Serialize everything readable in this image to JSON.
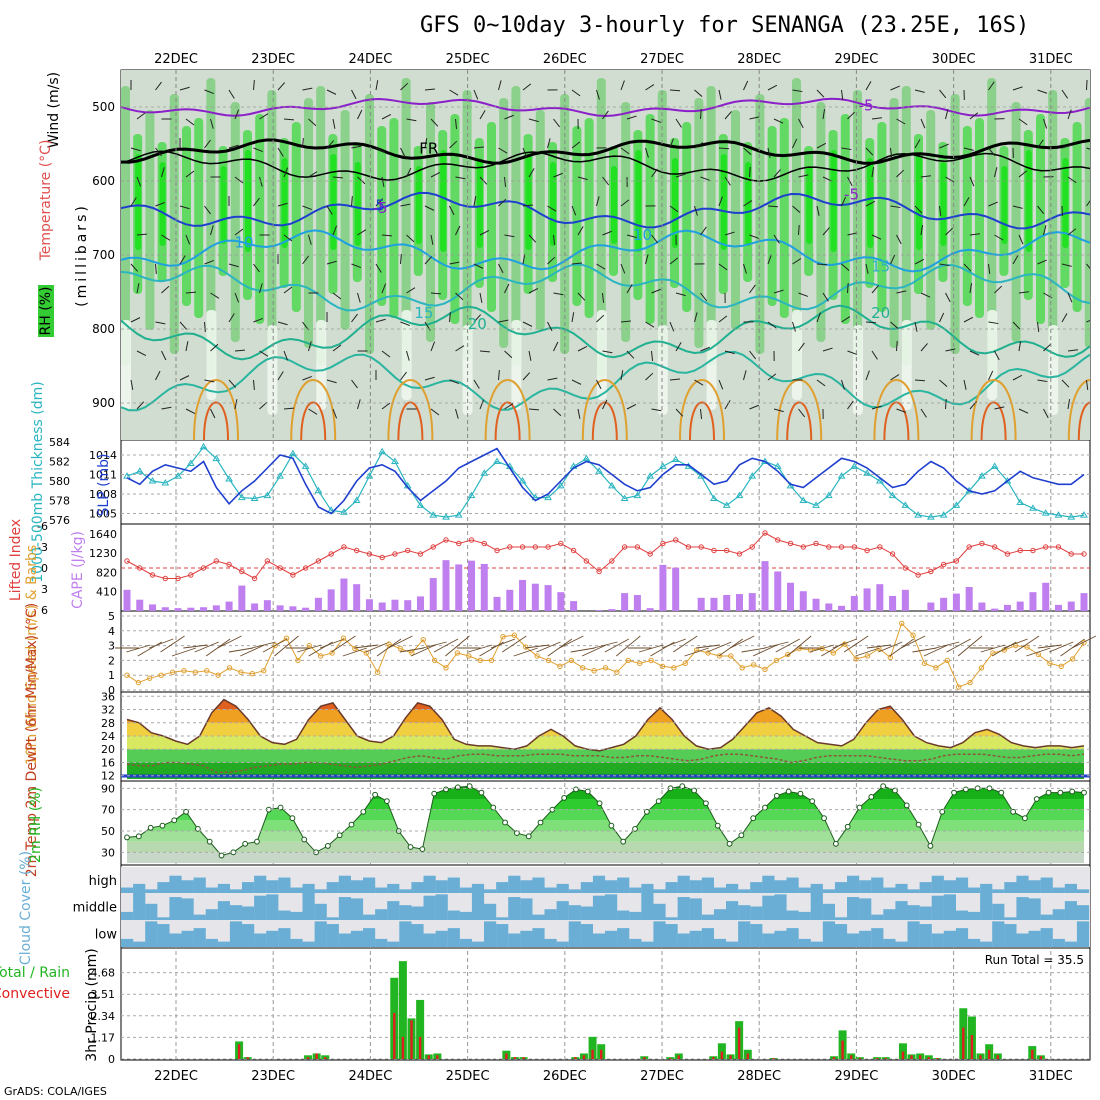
{
  "title": "GFS 0~10day 3-hourly for SENANGA (23.25E, 16S)",
  "footer": "GrADS: COLA/IGES",
  "dates": [
    "22DEC",
    "23DEC",
    "24DEC",
    "25DEC",
    "26DEC",
    "27DEC",
    "28DEC",
    "29DEC",
    "30DEC",
    "31DEC"
  ],
  "colors": {
    "rh_green": "#33cc33",
    "rh_light": "#cfe3cf",
    "purple": "#8b1fc9",
    "blue_line": "#1f3fcf",
    "cyan": "#2ab5c0",
    "red": "#e04040",
    "cape_bar": "#bf7fef",
    "orange": "#e0a030",
    "cloud": "#6aaed6",
    "precip_green": "#22b522",
    "precip_red": "#e02020"
  },
  "chart_data": [
    {
      "type": "heatmap",
      "name": "upper-air cross-section",
      "ylabel": "(millibars)",
      "side_labels": {
        "wind": "Wind (m/s)",
        "temp": "Temperature (°C)",
        "rh": "RH (%)"
      },
      "yticks": [
        500,
        600,
        700,
        800,
        900
      ],
      "ylim": [
        950,
        450
      ],
      "isotherm_labels": [
        {
          "text": "-5",
          "day": 7.1,
          "p": 505
        },
        {
          "text": "FR",
          "day": 2.6,
          "p": 563
        },
        {
          "text": "-5",
          "day": 6.95,
          "p": 625
        },
        {
          "text": "5",
          "day": 2.1,
          "p": 640
        },
        {
          "text": "-5",
          "day": 2.1,
          "p": 643
        },
        {
          "text": "10",
          "day": 0.7,
          "p": 690
        },
        {
          "text": "10",
          "day": 4.8,
          "p": 680
        },
        {
          "text": "15",
          "day": 2.55,
          "p": 785
        },
        {
          "text": "15",
          "day": 7.25,
          "p": 722
        },
        {
          "text": "20",
          "day": 3.1,
          "p": 800
        },
        {
          "text": "20",
          "day": 7.25,
          "p": 785
        }
      ]
    },
    {
      "type": "line",
      "name": "thickness and SLP",
      "ylabel_left": "1000-500mb Thickness (dm)",
      "ylabel_right": "SLP (mb)",
      "left_ticks": [
        576,
        578,
        580,
        582,
        584
      ],
      "right_ticks": [
        1005,
        1008,
        1011,
        1014
      ],
      "series": [
        {
          "name": "Thickness (dm)",
          "color": "#2ab5c0",
          "values": [
            580.5,
            581,
            580,
            579.8,
            580.5,
            581.8,
            583.5,
            582.3,
            580.2,
            578.3,
            578.2,
            578.5,
            580.5,
            582.8,
            581.5,
            579,
            577,
            576.8,
            578,
            580.5,
            583,
            582,
            579.5,
            577.5,
            576.5,
            576.3,
            576.5,
            578.5,
            580.8,
            582,
            581.5,
            580,
            578.3,
            578.3,
            579.5,
            581.5,
            582.3,
            581,
            579.5,
            578.2,
            578.5,
            580.5,
            581.5,
            582.2,
            581.5,
            580.5,
            578.2,
            577.5,
            578.5,
            580.5,
            582,
            581.5,
            579.5,
            578,
            577.5,
            578.5,
            580.5,
            581.5,
            580.8,
            580,
            578.5,
            577.5,
            576.5,
            576.3,
            576.5,
            577.5,
            579,
            580.5,
            581.5,
            580,
            577.8,
            577.2,
            576.7,
            576.5,
            576.3,
            576.5
          ]
        },
        {
          "name": "SLP (mb)",
          "color": "#1f3fcf",
          "values": [
            1010.5,
            1009.5,
            1011.5,
            1012.5,
            1012,
            1011.5,
            1013,
            1009,
            1006.5,
            1008.5,
            1010,
            1012,
            1014,
            1013.5,
            1009.5,
            1006,
            1005,
            1007,
            1010,
            1012,
            1012.5,
            1011.5,
            1009,
            1007,
            1008.5,
            1010,
            1012,
            1013,
            1014,
            1015,
            1012,
            1009,
            1007,
            1008,
            1010,
            1012,
            1013,
            1012.5,
            1011,
            1009.5,
            1008.5,
            1009,
            1011,
            1012.5,
            1012.5,
            1011,
            1009.5,
            1010,
            1012.5,
            1013.5,
            1013,
            1011.5,
            1009.5,
            1009,
            1010.5,
            1012,
            1013.5,
            1013,
            1012,
            1010.5,
            1009,
            1009.5,
            1011.5,
            1013,
            1012,
            1010,
            1008.5,
            1008,
            1008.5,
            1010,
            1011.5,
            1010.5,
            1010,
            1009.5,
            1009.5,
            1011
          ]
        }
      ]
    },
    {
      "type": "bar",
      "name": "CAPE and Lifted Index",
      "ylabel_left": "Lifted Index",
      "ylabel_right": "CAPE (J/kg)",
      "li_ticks": [
        -3,
        0,
        3,
        6
      ],
      "li_extra_tick": -6,
      "cape_ticks": [
        410,
        820,
        1230,
        1640
      ],
      "series": [
        {
          "name": "CAPE (J/kg)",
          "color": "#bf7fef",
          "values": [
            450,
            240,
            140,
            80,
            60,
            70,
            80,
            120,
            200,
            540,
            160,
            230,
            120,
            100,
            70,
            280,
            460,
            690,
            570,
            250,
            180,
            240,
            230,
            310,
            700,
            1080,
            990,
            1070,
            1000,
            300,
            450,
            660,
            580,
            550,
            400,
            210,
            0,
            20,
            40,
            380,
            340,
            60,
            980,
            920,
            0,
            280,
            280,
            340,
            360,
            380,
            1060,
            840,
            600,
            420,
            260,
            160,
            110,
            320,
            480,
            570,
            320,
            450,
            0,
            180,
            280,
            370,
            510,
            180,
            50,
            130,
            200,
            400,
            600,
            130,
            200,
            380
          ]
        },
        {
          "name": "Lifted Index",
          "color": "#e04040",
          "values": [
            -1,
            0,
            1,
            1.5,
            1.5,
            1,
            0,
            -1,
            -0.5,
            0.5,
            1.5,
            -1,
            0,
            1,
            0,
            -1,
            -2,
            -3,
            -2.5,
            -2,
            -1.5,
            -2,
            -2.5,
            -2,
            -3,
            -4,
            -3.5,
            -4,
            -3.5,
            -2.5,
            -3,
            -3,
            -3,
            -3,
            -3.5,
            -2.5,
            -1,
            0.5,
            -1,
            -3,
            -3,
            -2,
            -3.5,
            -4,
            -3,
            -3,
            -2.5,
            -2.5,
            -2,
            -3,
            -5,
            -4,
            -3.5,
            -3,
            -3.5,
            -3,
            -3,
            -3,
            -2.5,
            -3,
            -2,
            0,
            1,
            0.5,
            -0.5,
            -1,
            -3,
            -3.5,
            -3,
            -2,
            -2.5,
            -2.5,
            -3,
            -3,
            -2,
            -2
          ]
        }
      ]
    },
    {
      "type": "line",
      "name": "10m wind",
      "ylabel": "10m Wind Speed (m/s) & Barbs",
      "ylim": [
        0,
        5
      ],
      "yticks": [
        0,
        1,
        2,
        3,
        4,
        5
      ],
      "values": [
        1,
        0.5,
        0.8,
        1,
        1.2,
        1.3,
        1.2,
        1.3,
        1,
        1.5,
        1.2,
        1.1,
        1.3,
        3,
        3.5,
        2,
        3,
        2.3,
        2.5,
        3.5,
        2.8,
        2.5,
        1.2,
        3.1,
        2.8,
        2.5,
        3.4,
        2,
        1.5,
        2.5,
        2.3,
        2,
        2,
        3.6,
        3.7,
        2.9,
        2.3,
        2,
        1.6,
        2,
        1.5,
        1.3,
        1.5,
        1.2,
        2,
        1.8,
        2,
        1.6,
        1.5,
        1.8,
        2.7,
        2.5,
        2.3,
        2.3,
        1.5,
        1.7,
        1.4,
        2,
        2.4,
        2.8,
        2.7,
        2.8,
        2.5,
        3.1,
        2.1,
        2.3,
        2.8,
        2.2,
        4.5,
        3.7,
        1.8,
        1.5,
        2,
        0.2,
        0.5,
        1.5,
        2.5,
        2.7,
        3,
        2.9,
        2.4,
        1.8,
        1.6,
        2.1,
        3.2
      ]
    },
    {
      "type": "area",
      "name": "2m temperature and dewpoint",
      "ylabel": "2m Temp 2m DewPt (6hr Min/Max) (°C)",
      "yticks": [
        12,
        16,
        20,
        24,
        28,
        32,
        36
      ],
      "ylim": [
        11,
        37
      ],
      "series": [
        {
          "name": "2m Temp",
          "values": [
            29,
            28,
            25,
            24,
            22.5,
            21.5,
            24,
            31,
            35,
            33,
            29,
            24,
            22,
            21.5,
            23,
            29,
            33,
            34,
            29,
            24,
            22.5,
            22,
            24,
            29.5,
            34,
            33,
            29,
            23,
            21.5,
            21,
            21,
            20.5,
            20,
            21,
            24,
            26,
            24,
            21,
            20,
            19.5,
            20.5,
            21.5,
            24,
            29,
            32.5,
            29,
            24,
            21,
            20,
            20.5,
            23,
            27,
            31,
            32.5,
            30,
            26,
            24,
            22,
            21.5,
            21,
            23,
            28,
            32,
            33,
            29,
            24,
            22,
            21,
            20.5,
            22,
            25,
            26,
            24.5,
            22,
            21,
            20.5,
            21,
            21,
            20.5,
            21
          ]
        },
        {
          "name": "2m DewPt",
          "values": [
            15.5,
            15,
            15,
            16,
            16,
            15.5,
            15,
            13,
            13,
            13.5,
            14.5,
            15,
            15.5,
            15.5,
            16,
            16,
            15.5,
            15,
            14.5,
            15,
            15.5,
            16.5,
            17.5,
            18,
            17.5,
            17,
            18,
            18.5,
            18.5,
            18,
            18,
            18,
            18.5,
            18.5,
            18.5,
            18,
            18,
            18,
            17.5,
            17.5,
            18,
            18,
            17.5,
            17,
            16.5,
            17,
            18,
            18.5,
            18.5,
            18,
            17.5,
            17,
            16,
            16.5,
            17.5,
            18,
            18,
            18,
            18,
            17.5,
            17,
            16.5,
            16.5,
            17,
            18,
            18.5,
            18.5,
            18.5,
            18,
            17.5,
            17.5,
            18,
            18.5,
            18.5,
            18,
            18.5
          ]
        }
      ]
    },
    {
      "type": "area",
      "name": "2m RH",
      "ylabel": "2m RH (%)",
      "yticks": [
        30,
        50,
        70,
        90
      ],
      "ylim": [
        20,
        95
      ],
      "values": [
        44,
        45,
        53,
        55,
        60,
        68,
        52,
        40,
        27,
        30,
        38,
        40,
        70,
        72,
        62,
        42,
        30,
        36,
        46,
        56,
        68,
        84,
        78,
        50,
        35,
        33,
        85,
        89,
        91,
        92,
        86,
        72,
        58,
        48,
        45,
        58,
        70,
        81,
        89,
        87,
        76,
        55,
        40,
        52,
        68,
        78,
        90,
        92,
        88,
        76,
        55,
        38,
        46,
        62,
        72,
        83,
        87,
        85,
        78,
        62,
        38,
        54,
        72,
        82,
        92,
        88,
        74,
        56,
        36,
        68,
        86,
        89,
        90,
        90,
        86,
        68,
        62,
        80,
        86,
        86,
        87,
        86
      ]
    },
    {
      "type": "bar",
      "name": "cloud cover",
      "ylabel": "Cloud Cover (%)",
      "levels": [
        "high",
        "middle",
        "low"
      ]
    },
    {
      "type": "bar",
      "name": "3hr precipitation",
      "ylabel": "3hr Precip (mm)",
      "legend_total": "Total / Rain",
      "legend_convective": "Convective",
      "run_total_label": "Run Total = 35.5",
      "yticks": [
        0,
        1.17,
        2.34,
        3.51,
        4.68
      ],
      "ylim": [
        0,
        5.85
      ],
      "series": [
        {
          "name": "Total",
          "color": "#22b522",
          "values": [
            0,
            0,
            0,
            0,
            0,
            0,
            0,
            0,
            0,
            0,
            0,
            0,
            0,
            0.95,
            0.1,
            0,
            0,
            0,
            0,
            0,
            0,
            0.2,
            0.3,
            0.2,
            0,
            0,
            0,
            0,
            0,
            0,
            0,
            4.4,
            5.3,
            2.2,
            3.2,
            0.25,
            0.3,
            0,
            0,
            0,
            0,
            0,
            0,
            0,
            0.45,
            0.1,
            0.1,
            0,
            0,
            0,
            0,
            0,
            0.1,
            0.3,
            1.2,
            0.8,
            0,
            0,
            0,
            0,
            0.15,
            0,
            0,
            0.1,
            0.3,
            0,
            0,
            0,
            0.15,
            0.85,
            0.25,
            2.05,
            0.5,
            0,
            0,
            0.05,
            0,
            0,
            0,
            0,
            0,
            0,
            0.15,
            1.55,
            0.3,
            0.1,
            0,
            0.1,
            0.1,
            0,
            0.85,
            0.25,
            0.3,
            0.2,
            0.05,
            0,
            0,
            2.75,
            2.3,
            0.3,
            0.8,
            0.3,
            0,
            0,
            0,
            0.7,
            0.2,
            0,
            0,
            0,
            0,
            0
          ]
        },
        {
          "name": "Convective",
          "color": "#e02020",
          "values": [
            0,
            0,
            0,
            0,
            0,
            0,
            0,
            0,
            0,
            0,
            0,
            0,
            0,
            0.8,
            0.1,
            0,
            0,
            0,
            0,
            0,
            0,
            0.1,
            0.3,
            0.1,
            0,
            0,
            0,
            0,
            0,
            0,
            0,
            2.5,
            1.2,
            2.1,
            1.2,
            0.2,
            0.2,
            0,
            0,
            0,
            0,
            0,
            0,
            0,
            0.3,
            0.1,
            0.1,
            0,
            0,
            0,
            0,
            0,
            0.1,
            0.2,
            0.5,
            0.5,
            0,
            0,
            0,
            0,
            0.1,
            0,
            0,
            0.05,
            0.2,
            0,
            0,
            0,
            0.1,
            0.4,
            0.2,
            1.7,
            0.3,
            0,
            0,
            0.05,
            0,
            0,
            0,
            0,
            0,
            0,
            0.1,
            1,
            0.2,
            0.05,
            0,
            0.05,
            0.05,
            0,
            0.4,
            0.2,
            0.2,
            0.1,
            0.05,
            0,
            0,
            1.7,
            1.3,
            0.2,
            0.5,
            0.2,
            0,
            0,
            0,
            0.5,
            0.15,
            0,
            0,
            0,
            0,
            0
          ]
        }
      ]
    }
  ]
}
